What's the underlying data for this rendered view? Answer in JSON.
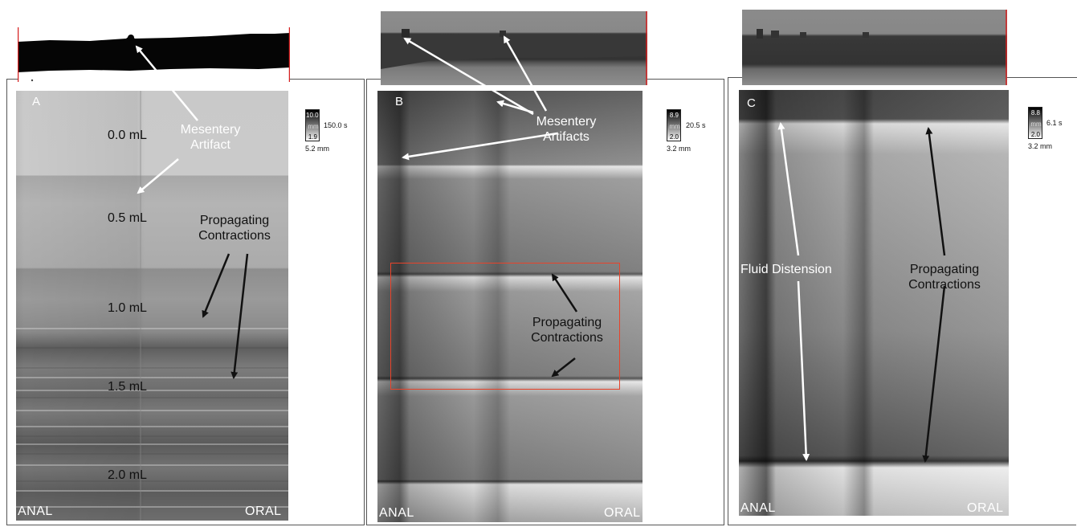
{
  "panels": [
    {
      "letter": "A",
      "edges": {
        "left": "ANAL",
        "right": "ORAL"
      },
      "volumes": [
        "0.0 mL",
        "0.5 mL",
        "1.0 mL",
        "1.5 mL",
        "2.0 mL"
      ],
      "annotations": [
        {
          "text": "Mesentery\nArtifact",
          "color": "white"
        },
        {
          "text": "Propagating\nContractions",
          "color": "black"
        }
      ],
      "scale": {
        "max": "10.0",
        "unit": "mm",
        "min": "1.9",
        "time": "150.0 s",
        "size": "5.2 mm"
      }
    },
    {
      "letter": "B",
      "edges": {
        "left": "ANAL",
        "right": "ORAL"
      },
      "annotations": [
        {
          "text": "Mesentery\nArtifacts",
          "color": "white"
        },
        {
          "text": "Propagating\nContractions",
          "color": "black"
        }
      ],
      "scale": {
        "max": "8.9",
        "unit": "mm",
        "min": "2.0",
        "time": "20.5 s",
        "size": "3.2 mm"
      }
    },
    {
      "letter": "C",
      "edges": {
        "left": "ANAL",
        "right": "ORAL"
      },
      "annotations": [
        {
          "text": "Fluid Distension",
          "color": "white"
        },
        {
          "text": "Propagating\nContractions",
          "color": "black"
        }
      ],
      "scale": {
        "max": "8.8",
        "unit": "mm",
        "min": "2.0",
        "time": "6.1 s",
        "size": "3.2 mm"
      }
    }
  ],
  "colors": {
    "highlight_box": "#e8432a",
    "strip_edge": "#d62020"
  }
}
